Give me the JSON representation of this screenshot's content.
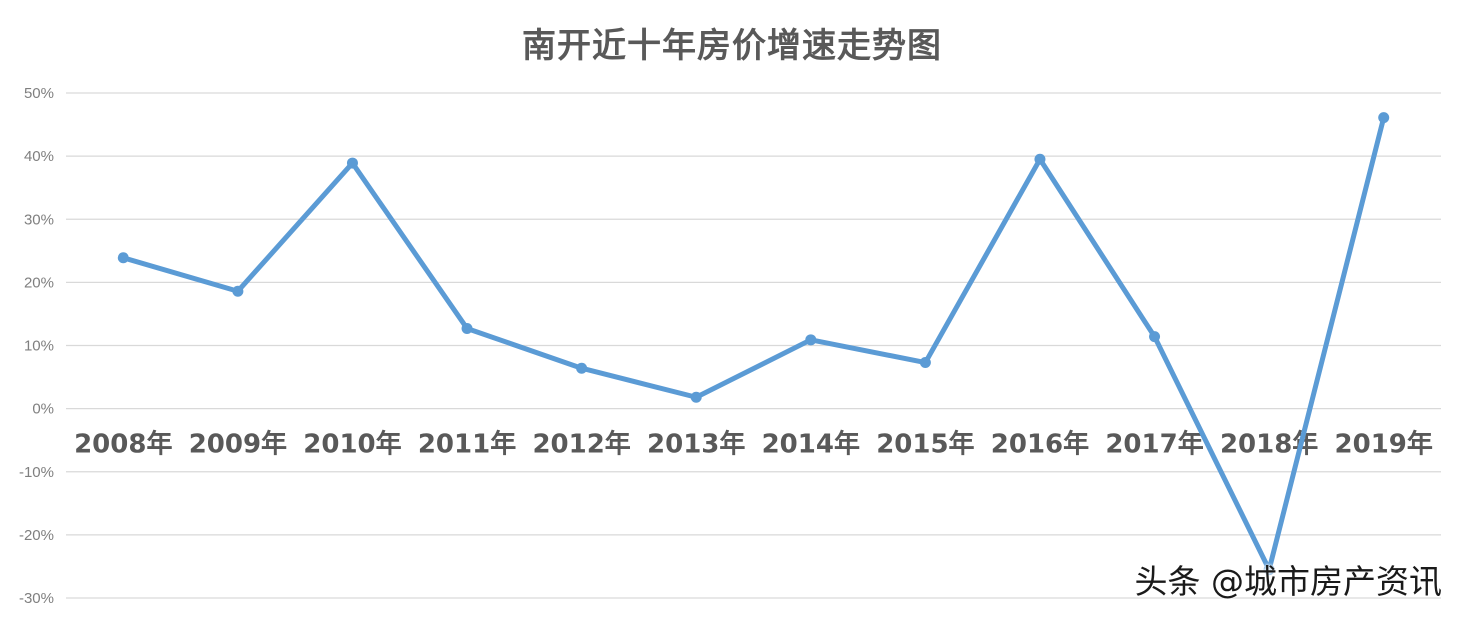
{
  "chart_data": {
    "type": "line",
    "title": "南开近十年房价增速走势图",
    "categories": [
      "2008年",
      "2009年",
      "2010年",
      "2011年",
      "2012年",
      "2013年",
      "2014年",
      "2015年",
      "2016年",
      "2017年",
      "2018年",
      "2019年"
    ],
    "series": [
      {
        "values": [
          0.239,
          0.186,
          0.389,
          0.127,
          0.064,
          0.018,
          0.109,
          0.073,
          0.395,
          0.114,
          -0.255,
          0.461
        ]
      }
    ],
    "y_ticks": [
      "50%",
      "40%",
      "30%",
      "20%",
      "10%",
      "0%",
      "-10%",
      "-20%",
      "-30%"
    ],
    "ylim": [
      -0.3,
      0.5
    ],
    "grid": true,
    "legend": "none",
    "line_color": "#5b9bd5"
  },
  "watermark": "头条 @城市房产资讯"
}
